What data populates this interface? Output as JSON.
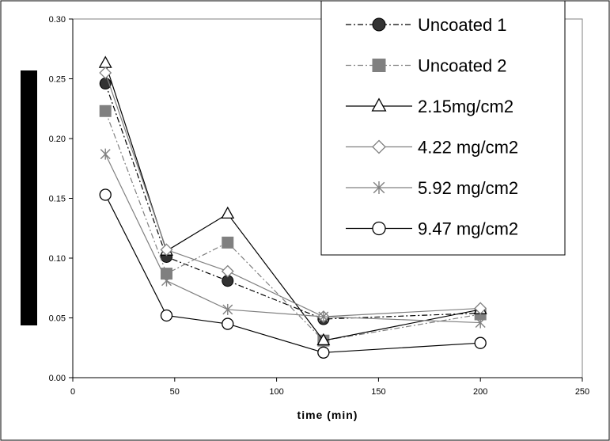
{
  "chart_data": {
    "type": "line",
    "title": "",
    "xlabel": "time (min)",
    "ylabel": "",
    "xlim": [
      0,
      250
    ],
    "ylim": [
      0,
      0.3
    ],
    "xticks": [
      "0",
      "50",
      "100",
      "150",
      "200",
      "250"
    ],
    "yticks": [
      "0.00",
      "0.05",
      "0.10",
      "0.15",
      "0.20",
      "0.25",
      "0.30"
    ],
    "grid": false,
    "legend_position": "top-right",
    "ylabel_redacted": true,
    "series": [
      {
        "name": "Uncoated 1",
        "marker": "filled-circle",
        "line": "dash-dot",
        "color": "#000000",
        "marker_color": "#333333",
        "x": [
          16,
          46,
          76,
          123,
          200
        ],
        "y": [
          0.246,
          0.101,
          0.081,
          0.049,
          0.054
        ]
      },
      {
        "name": "Uncoated 2",
        "marker": "filled-square",
        "line": "dash-dot",
        "color": "#808080",
        "marker_color": "#808080",
        "x": [
          16,
          46,
          76,
          123,
          200
        ],
        "y": [
          0.223,
          0.087,
          0.113,
          0.031,
          0.053
        ]
      },
      {
        "name": "2.15mg/cm2",
        "marker": "open-triangle",
        "line": "solid",
        "color": "#000000",
        "marker_color": "#000000",
        "x": [
          16,
          46,
          76,
          123,
          200
        ],
        "y": [
          0.263,
          0.106,
          0.137,
          0.031,
          0.057
        ]
      },
      {
        "name": "4.22 mg/cm2",
        "marker": "open-diamond",
        "line": "solid",
        "color": "#808080",
        "marker_color": "#808080",
        "x": [
          16,
          46,
          76,
          123,
          200
        ],
        "y": [
          0.255,
          0.107,
          0.089,
          0.051,
          0.058
        ]
      },
      {
        "name": "5.92 mg/cm2",
        "marker": "asterisk",
        "line": "solid",
        "color": "#808080",
        "marker_color": "#808080",
        "x": [
          16,
          46,
          76,
          123,
          200
        ],
        "y": [
          0.187,
          0.081,
          0.057,
          0.051,
          0.046
        ]
      },
      {
        "name": "9.47 mg/cm2",
        "marker": "open-circle",
        "line": "solid",
        "color": "#000000",
        "marker_color": "#000000",
        "x": [
          16,
          46,
          76,
          123,
          200
        ],
        "y": [
          0.153,
          0.052,
          0.045,
          0.021,
          0.029
        ]
      }
    ]
  }
}
